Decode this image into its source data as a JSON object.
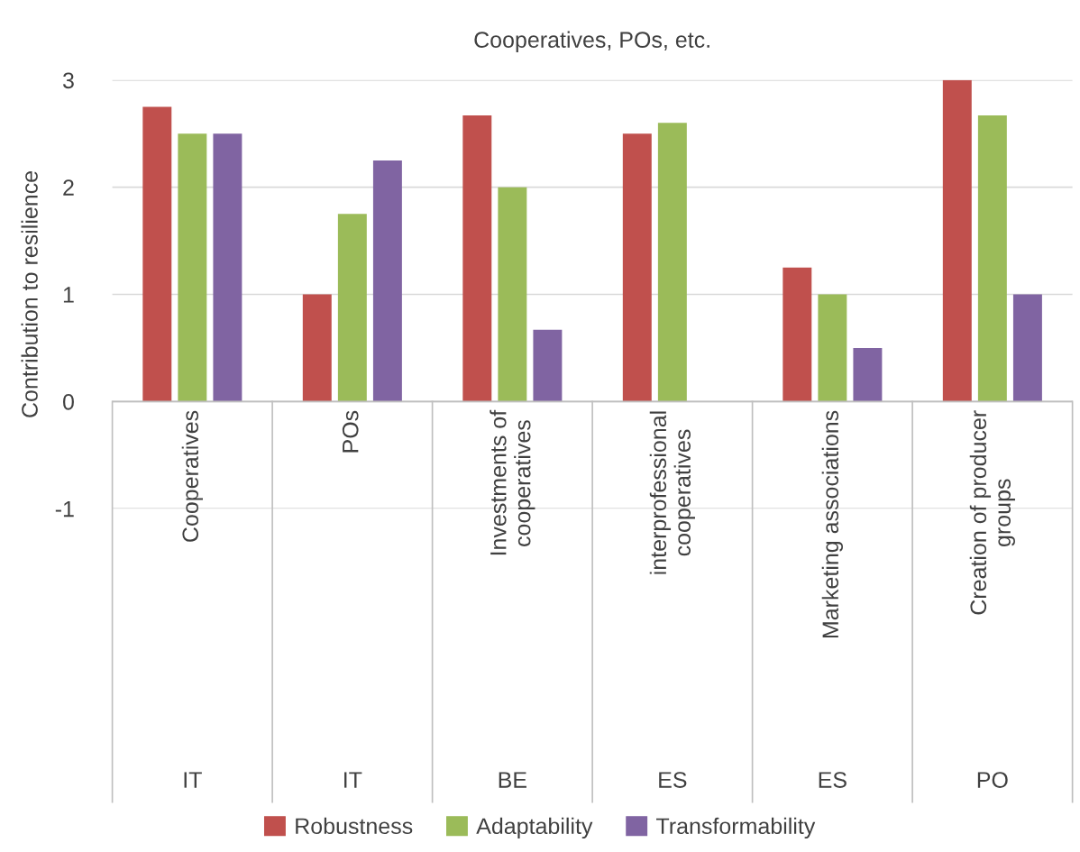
{
  "chart_data": {
    "type": "bar",
    "title": "Cooperatives, POs, etc.",
    "ylabel": "Contribution to resilience",
    "categories": [
      "Cooperatives",
      "POs",
      "Investments of\ncooperatives",
      "interprofessional\ncooperatives",
      "Marketing associations",
      "Creation of producer\ngroups"
    ],
    "series": [
      {
        "name": "Robustness",
        "color": "#c0504d",
        "values": [
          2.75,
          1.0,
          2.67,
          2.5,
          1.25,
          3.0
        ]
      },
      {
        "name": "Adaptability",
        "color": "#9bbb59",
        "values": [
          2.5,
          1.75,
          2.0,
          2.6,
          1.0,
          2.67
        ]
      },
      {
        "name": "Transformability",
        "color": "#8064a2",
        "values": [
          2.5,
          2.25,
          0.67,
          null,
          0.5,
          1.0
        ]
      }
    ],
    "annotations": [
      "IT",
      "IT",
      "BE",
      "ES",
      "ES",
      "PO"
    ],
    "ylim": [
      -1,
      3
    ],
    "yticks": [
      -1,
      0,
      1,
      2,
      3
    ],
    "grid": "y",
    "legend": "bottom"
  }
}
